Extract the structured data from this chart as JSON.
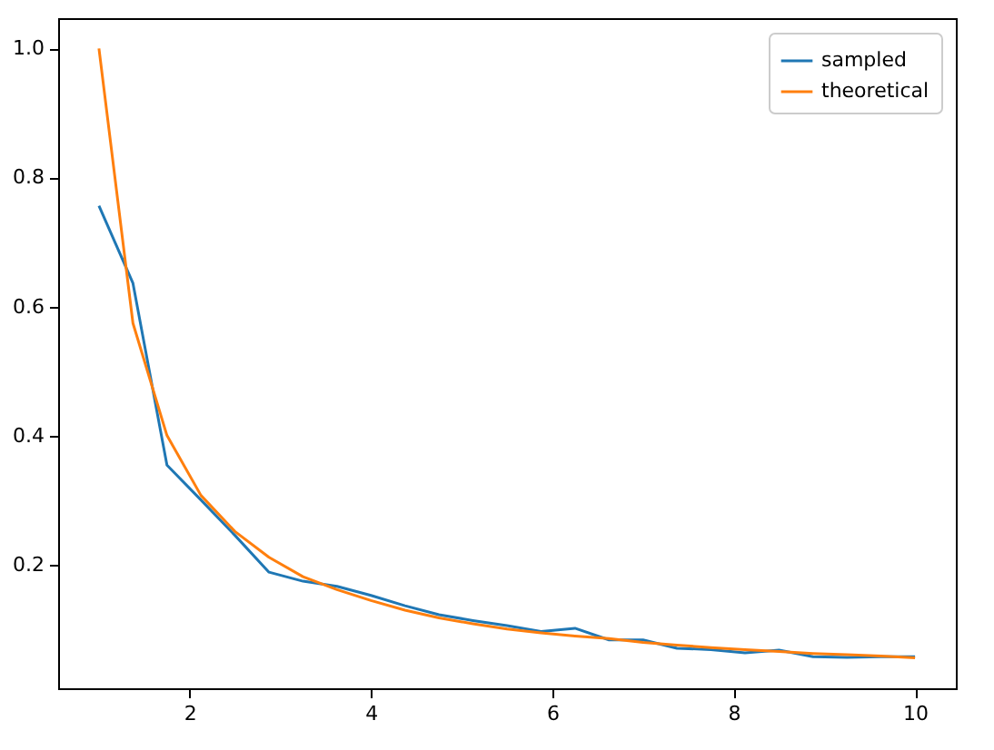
{
  "chart_data": {
    "type": "line",
    "x": [
      1,
      1.375,
      1.75,
      2.125,
      2.5,
      2.875,
      3.25,
      3.625,
      4,
      4.375,
      4.75,
      5.125,
      5.5,
      5.875,
      6.25,
      6.625,
      7,
      7.375,
      7.75,
      8.125,
      8.5,
      8.875,
      9.25,
      9.625,
      10
    ],
    "series": [
      {
        "name": "sampled",
        "color": "#1f77b4",
        "values": [
          0.756,
          0.636,
          0.354,
          0.3,
          0.245,
          0.188,
          0.174,
          0.166,
          0.152,
          0.136,
          0.122,
          0.113,
          0.105,
          0.096,
          0.101,
          0.083,
          0.083,
          0.07,
          0.068,
          0.063,
          0.067,
          0.057,
          0.056,
          0.057,
          0.057
        ]
      },
      {
        "name": "theoretical",
        "color": "#ff7f0e",
        "values": [
          1.0,
          0.574,
          0.4,
          0.307,
          0.251,
          0.211,
          0.181,
          0.161,
          0.144,
          0.129,
          0.117,
          0.108,
          0.1,
          0.094,
          0.089,
          0.085,
          0.079,
          0.075,
          0.071,
          0.068,
          0.065,
          0.062,
          0.06,
          0.058,
          0.055
        ]
      }
    ],
    "xlim": [
      0.55,
      10.45
    ],
    "ylim": [
      0.008,
      1.047
    ],
    "xticks": [
      2,
      4,
      6,
      8,
      10
    ],
    "yticks": [
      {
        "value": 0.2,
        "label": "0.2"
      },
      {
        "value": 0.4,
        "label": "0.4"
      },
      {
        "value": 0.6,
        "label": "0.6"
      },
      {
        "value": 0.8,
        "label": "0.8"
      },
      {
        "value": 1.0,
        "label": "1.0"
      }
    ],
    "legend": "top right",
    "grid": false,
    "line_style": "solid",
    "marker": "none"
  }
}
